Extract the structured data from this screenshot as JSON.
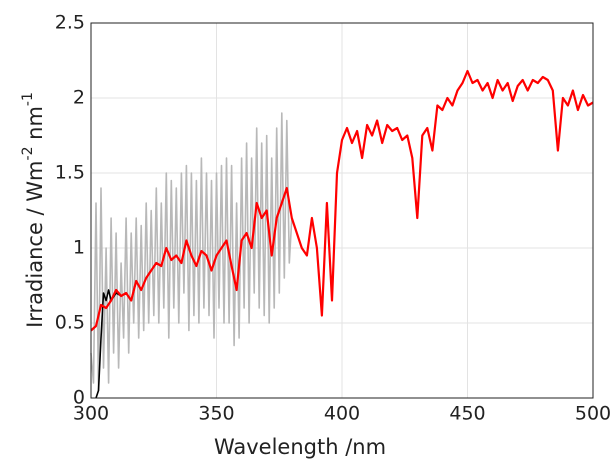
{
  "chart_data": {
    "type": "line",
    "xlabel": "Wavelength /nm",
    "ylabel": [
      "Irradiance / Wm",
      "-2",
      " nm",
      "-1"
    ],
    "xlim": [
      300,
      500
    ],
    "xticks": [
      300,
      350,
      400,
      450,
      500
    ],
    "ylim": [
      0,
      2.5
    ],
    "yticks": [
      0,
      0.5,
      1,
      1.5,
      2,
      2.5
    ],
    "grid": true,
    "series": [
      {
        "color": "#b8b8b8",
        "x": [
          300,
          301,
          302,
          303,
          304,
          305,
          306,
          307,
          308,
          309,
          310,
          311,
          312,
          313,
          314,
          315,
          316,
          317,
          318,
          319,
          320,
          321,
          322,
          323,
          324,
          325,
          326,
          327,
          328,
          329,
          330,
          331,
          332,
          333,
          334,
          335,
          336,
          337,
          338,
          339,
          340,
          341,
          342,
          343,
          344,
          345,
          346,
          347,
          348,
          349,
          350,
          351,
          352,
          353,
          354,
          355,
          356,
          357,
          358,
          359,
          360,
          361,
          362,
          363,
          364,
          365,
          366,
          367,
          368,
          369,
          370,
          371,
          372,
          373,
          374,
          375,
          376,
          377,
          378,
          379,
          380
        ],
        "values": [
          0.3,
          0.1,
          1.3,
          0.05,
          1.4,
          0.2,
          1.0,
          0.1,
          1.2,
          0.3,
          1.1,
          0.2,
          0.9,
          0.4,
          1.2,
          0.3,
          1.1,
          0.5,
          1.2,
          0.4,
          1.15,
          0.45,
          1.3,
          0.5,
          1.25,
          0.55,
          1.4,
          0.5,
          1.3,
          0.6,
          1.5,
          0.4,
          1.45,
          0.6,
          1.4,
          0.5,
          1.5,
          0.7,
          1.55,
          0.45,
          1.5,
          0.55,
          1.45,
          0.5,
          1.6,
          0.6,
          1.5,
          0.55,
          1.45,
          0.4,
          1.5,
          0.6,
          1.55,
          0.5,
          1.6,
          0.5,
          1.55,
          0.35,
          1.3,
          0.4,
          1.6,
          0.6,
          1.7,
          0.5,
          1.6,
          0.7,
          1.8,
          0.6,
          1.7,
          0.55,
          1.75,
          0.5,
          1.6,
          0.6,
          1.8,
          0.7,
          1.9,
          0.8,
          1.85,
          0.9,
          1.2
        ]
      },
      {
        "color": "#000000",
        "x": [
          302,
          303,
          304,
          305,
          306,
          307,
          308,
          310,
          312,
          314,
          316,
          318,
          320,
          322,
          324,
          326,
          328,
          330
        ],
        "values": [
          0.0,
          0.05,
          0.4,
          0.7,
          0.65,
          0.72,
          0.65,
          0.7,
          0.68,
          0.7,
          0.65,
          0.78,
          0.72,
          0.8,
          0.85,
          0.9,
          0.88,
          1.0
        ]
      },
      {
        "color": "#ff0000",
        "x": [
          300,
          302,
          304,
          306,
          308,
          310,
          312,
          314,
          316,
          318,
          320,
          322,
          324,
          326,
          328,
          330,
          332,
          334,
          336,
          338,
          340,
          342,
          344,
          346,
          348,
          350,
          352,
          354,
          356,
          358,
          360,
          362,
          364,
          366,
          368,
          370,
          372,
          374,
          376,
          378,
          380,
          382,
          384,
          386,
          388,
          390,
          392,
          394,
          396,
          398,
          400,
          402,
          404,
          406,
          408,
          410,
          412,
          414,
          416,
          418,
          420,
          422,
          424,
          426,
          428,
          430,
          432,
          434,
          436,
          438,
          440,
          442,
          444,
          446,
          448,
          450,
          452,
          454,
          456,
          458,
          460,
          462,
          464,
          466,
          468,
          470,
          472,
          474,
          476,
          478,
          480,
          482,
          484,
          486,
          488,
          490,
          492,
          494,
          496,
          498,
          500
        ],
        "values": [
          0.45,
          0.48,
          0.62,
          0.6,
          0.65,
          0.72,
          0.68,
          0.7,
          0.65,
          0.78,
          0.72,
          0.8,
          0.85,
          0.9,
          0.88,
          1.0,
          0.92,
          0.95,
          0.9,
          1.05,
          0.95,
          0.88,
          0.98,
          0.95,
          0.85,
          0.95,
          1.0,
          1.05,
          0.88,
          0.72,
          1.05,
          1.1,
          1.0,
          1.3,
          1.2,
          1.25,
          0.95,
          1.2,
          1.3,
          1.4,
          1.2,
          1.1,
          1.0,
          0.95,
          1.2,
          1.0,
          0.55,
          1.3,
          0.65,
          1.5,
          1.72,
          1.8,
          1.7,
          1.78,
          1.6,
          1.82,
          1.75,
          1.85,
          1.7,
          1.82,
          1.78,
          1.8,
          1.72,
          1.75,
          1.6,
          1.2,
          1.75,
          1.8,
          1.65,
          1.95,
          1.92,
          2.0,
          1.95,
          2.05,
          2.1,
          2.18,
          2.1,
          2.12,
          2.05,
          2.1,
          2.0,
          2.12,
          2.05,
          2.1,
          1.98,
          2.08,
          2.12,
          2.05,
          2.12,
          2.1,
          2.14,
          2.12,
          2.05,
          1.65,
          2.0,
          1.95,
          2.05,
          1.92,
          2.02,
          1.95,
          1.97
        ]
      }
    ]
  }
}
